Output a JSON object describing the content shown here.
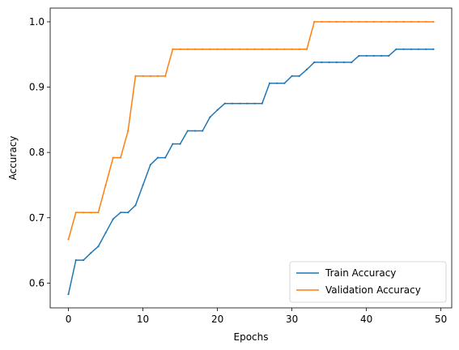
{
  "chart_data": {
    "type": "line",
    "xlabel": "Epochs",
    "ylabel": "Accuracy",
    "xlim": [
      -2.45,
      51.45
    ],
    "ylim": [
      0.562,
      1.021
    ],
    "xticks": [
      0,
      10,
      20,
      30,
      40,
      50
    ],
    "yticks": [
      0.6,
      0.7,
      0.8,
      0.9,
      1.0
    ],
    "xtick_labels": [
      "0",
      "10",
      "20",
      "30",
      "40",
      "50"
    ],
    "ytick_labels": [
      "0.6",
      "0.7",
      "0.8",
      "0.9",
      "1.0"
    ],
    "grid": false,
    "legend_position": "lower-right",
    "x": [
      0,
      1,
      2,
      3,
      4,
      5,
      6,
      7,
      8,
      9,
      10,
      11,
      12,
      13,
      14,
      15,
      16,
      17,
      18,
      19,
      20,
      21,
      22,
      23,
      24,
      25,
      26,
      27,
      28,
      29,
      30,
      31,
      32,
      33,
      34,
      35,
      36,
      37,
      38,
      39,
      40,
      41,
      42,
      43,
      44,
      45,
      46,
      47,
      48,
      49
    ],
    "series": [
      {
        "name": "Train Accuracy",
        "color": "#1f77b4",
        "values": [
          0.583,
          0.635,
          0.635,
          0.646,
          0.656,
          0.677,
          0.698,
          0.708,
          0.708,
          0.719,
          0.75,
          0.781,
          0.792,
          0.792,
          0.813,
          0.813,
          0.833,
          0.833,
          0.833,
          0.854,
          0.865,
          0.875,
          0.875,
          0.875,
          0.875,
          0.875,
          0.875,
          0.906,
          0.906,
          0.906,
          0.917,
          0.917,
          0.927,
          0.938,
          0.938,
          0.938,
          0.938,
          0.938,
          0.938,
          0.948,
          0.948,
          0.948,
          0.948,
          0.948,
          0.958,
          0.958,
          0.958,
          0.958,
          0.958,
          0.958
        ]
      },
      {
        "name": "Validation Accuracy",
        "color": "#ff7f0e",
        "values": [
          0.667,
          0.708,
          0.708,
          0.708,
          0.708,
          0.75,
          0.792,
          0.792,
          0.833,
          0.917,
          0.917,
          0.917,
          0.917,
          0.917,
          0.958,
          0.958,
          0.958,
          0.958,
          0.958,
          0.958,
          0.958,
          0.958,
          0.958,
          0.958,
          0.958,
          0.958,
          0.958,
          0.958,
          0.958,
          0.958,
          0.958,
          0.958,
          0.958,
          1.0,
          1.0,
          1.0,
          1.0,
          1.0,
          1.0,
          1.0,
          1.0,
          1.0,
          1.0,
          1.0,
          1.0,
          1.0,
          1.0,
          1.0,
          1.0,
          1.0
        ]
      }
    ]
  }
}
